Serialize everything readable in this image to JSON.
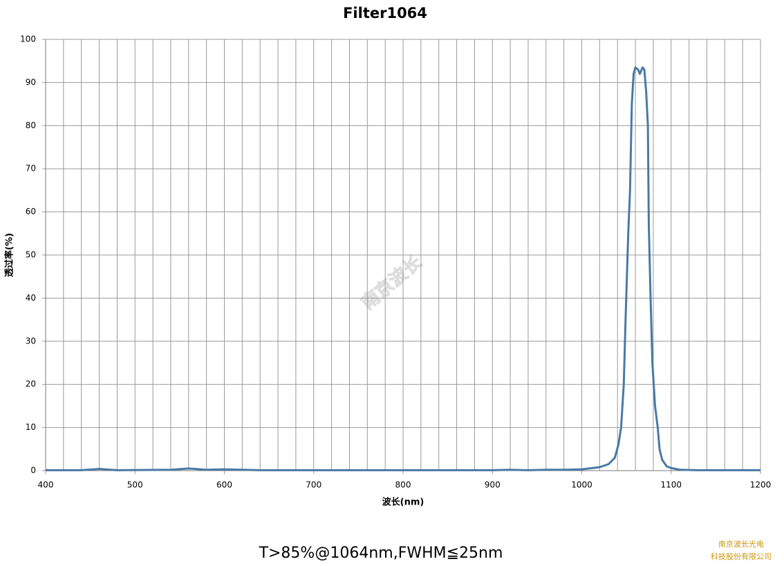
{
  "chart_data": {
    "type": "line",
    "title": "Filter1064",
    "x_label": "波长(nm)",
    "y_label": "透过率(%)",
    "note": "T>85%@1064nm,FWHM≦25nm",
    "watermark": "南京波长",
    "company": [
      "南京波长光电",
      "科技股份有限公司"
    ],
    "xlim": [
      400,
      1200
    ],
    "xticks": [
      400,
      500,
      600,
      700,
      800,
      900,
      1000,
      1100,
      1200
    ],
    "x_minor_grid": [
      420,
      440,
      460,
      480,
      520,
      540,
      560,
      580,
      620,
      640,
      660,
      680,
      720,
      740,
      760,
      780,
      820,
      840,
      860,
      880,
      920,
      940,
      960,
      980,
      1020,
      1040,
      1060,
      1080,
      1120,
      1140,
      1160,
      1180
    ],
    "ylim": [
      0,
      100
    ],
    "yticks": [
      0,
      10,
      20,
      30,
      40,
      50,
      60,
      70,
      80,
      90,
      100
    ],
    "grid": true,
    "series": [
      {
        "color": "#4a78a6",
        "x": [
          400,
          440,
          460,
          480,
          540,
          560,
          580,
          600,
          620,
          640,
          900,
          920,
          940,
          960,
          980,
          1000,
          1020,
          1030,
          1037,
          1041,
          1044,
          1047,
          1049,
          1052,
          1054,
          1056,
          1058,
          1060,
          1063,
          1065,
          1068,
          1070,
          1072,
          1074,
          1075,
          1077,
          1079,
          1082,
          1085,
          1087,
          1090,
          1095,
          1100,
          1110,
          1130,
          1200
        ],
        "values": [
          0.1,
          0.1,
          0.4,
          0.1,
          0.2,
          0.5,
          0.2,
          0.3,
          0.2,
          0.1,
          0.1,
          0.2,
          0.1,
          0.2,
          0.2,
          0.3,
          0.8,
          1.5,
          3,
          6,
          10,
          20,
          35,
          55,
          65,
          85,
          92,
          93.5,
          93,
          92,
          93.5,
          93,
          88,
          80,
          57,
          40,
          25,
          15,
          10,
          5,
          2.5,
          1,
          0.6,
          0.2,
          0.1,
          0.1
        ]
      }
    ]
  }
}
